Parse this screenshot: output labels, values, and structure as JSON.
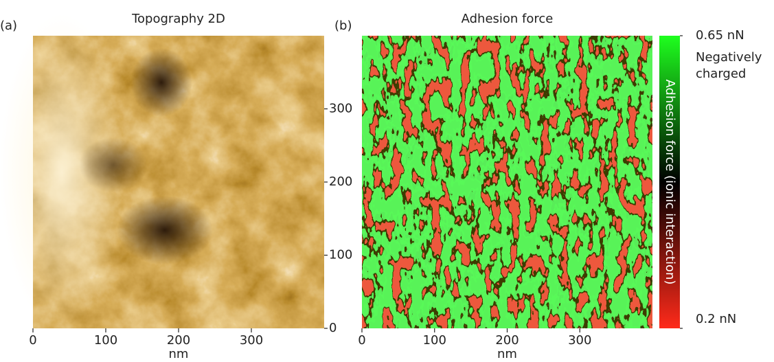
{
  "chart_data": [
    {
      "type": "image",
      "panel_label": "(a)",
      "title": "Topography 2D",
      "xlabel": "nm",
      "xlim": [
        0,
        400
      ],
      "xticks": [
        0,
        100,
        200,
        300
      ],
      "ylim": [
        0,
        400
      ],
      "yticks": [
        0,
        100,
        200,
        300
      ]
    },
    {
      "type": "image",
      "panel_label": "(b)",
      "title": "Adhesion force",
      "xlabel": "nm",
      "xlim": [
        0,
        400
      ],
      "xticks": [
        0,
        100,
        200,
        300
      ],
      "colorbar": {
        "label": "Adhesion force (ionic interaction)",
        "lim": [
          0.2,
          0.65
        ],
        "ticks": [
          {
            "value": 0.2,
            "label": "0.2 nN"
          },
          {
            "value": 0.65,
            "label": "0.65 nN"
          }
        ],
        "annotation": "Negatively charged"
      }
    }
  ]
}
